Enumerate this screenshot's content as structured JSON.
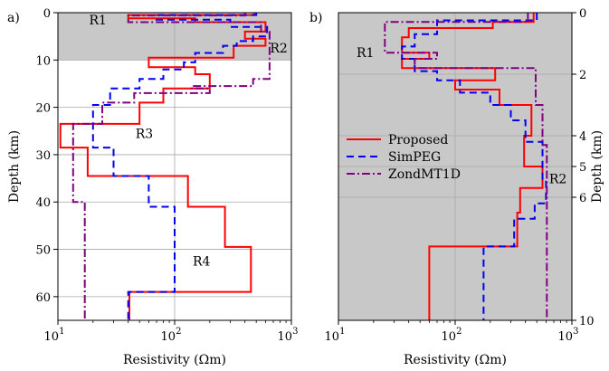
{
  "chart_data": [
    {
      "type": "line",
      "panel_label": "a)",
      "xlabel": "Resistivity (Ωm)",
      "ylabel": "Depth (km)",
      "x_scale": "log",
      "xlim": [
        10,
        1000
      ],
      "ylim": [
        65,
        0
      ],
      "x_ticks": [
        {
          "value": 10,
          "base": "10",
          "exp": "1"
        },
        {
          "value": 100,
          "base": "10",
          "exp": "2"
        },
        {
          "value": 1000,
          "base": "10",
          "exp": "3"
        }
      ],
      "y_ticks": [
        "0",
        "10",
        "20",
        "30",
        "40",
        "50",
        "60"
      ],
      "y_tick_values": [
        0,
        10,
        20,
        30,
        40,
        50,
        60
      ],
      "shaded_region": {
        "depth_from": 0,
        "depth_to": 10,
        "color": "#c8c8c8"
      },
      "grid": true,
      "annotations": [
        {
          "text": "R1",
          "x": 22,
          "depth": 1.5
        },
        {
          "text": "R2",
          "x": 780,
          "depth": 7.5
        },
        {
          "text": "R3",
          "x": 55,
          "depth": 25.5
        },
        {
          "text": "R4",
          "x": 170,
          "depth": 52.5
        }
      ],
      "series": [
        {
          "name": "Proposed",
          "color": "#ff0000",
          "dash": "solid",
          "points": [
            [
              480,
              0
            ],
            [
              480,
              0.5
            ],
            [
              40,
              0.5
            ],
            [
              40,
              1.2
            ],
            [
              150,
              1.2
            ],
            [
              150,
              2
            ],
            [
              600,
              2
            ],
            [
              600,
              4
            ],
            [
              400,
              4
            ],
            [
              400,
              5.5
            ],
            [
              600,
              5.5
            ],
            [
              600,
              7
            ],
            [
              320,
              7
            ],
            [
              320,
              9.5
            ],
            [
              60,
              9.5
            ],
            [
              60,
              11.5
            ],
            [
              150,
              11.5
            ],
            [
              150,
              13
            ],
            [
              200,
              13
            ],
            [
              200,
              16
            ],
            [
              80,
              16
            ],
            [
              80,
              19
            ],
            [
              50,
              19
            ],
            [
              50,
              23.5
            ],
            [
              10.5,
              23.5
            ],
            [
              10.5,
              28.5
            ],
            [
              18,
              28.5
            ],
            [
              18,
              34.5
            ],
            [
              130,
              34.5
            ],
            [
              130,
              41
            ],
            [
              270,
              41
            ],
            [
              270,
              49.5
            ],
            [
              450,
              49.5
            ],
            [
              450,
              59
            ],
            [
              41,
              59
            ],
            [
              41,
              65
            ]
          ]
        },
        {
          "name": "SimPEG",
          "color": "#0000ee",
          "dash": "8,5",
          "points": [
            [
              500,
              0
            ],
            [
              500,
              0.5
            ],
            [
              70,
              0.5
            ],
            [
              70,
              1.5
            ],
            [
              300,
              1.5
            ],
            [
              300,
              3
            ],
            [
              620,
              3
            ],
            [
              620,
              5
            ],
            [
              470,
              5
            ],
            [
              470,
              6
            ],
            [
              340,
              6
            ],
            [
              340,
              7
            ],
            [
              260,
              7
            ],
            [
              260,
              8.5
            ],
            [
              150,
              8.5
            ],
            [
              150,
              10.5
            ],
            [
              120,
              10.5
            ],
            [
              120,
              12
            ],
            [
              80,
              12
            ],
            [
              80,
              14
            ],
            [
              50,
              14
            ],
            [
              50,
              16
            ],
            [
              28,
              16
            ],
            [
              28,
              19.5
            ],
            [
              20,
              19.5
            ],
            [
              20,
              28.5
            ],
            [
              30,
              28.5
            ],
            [
              30,
              34.5
            ],
            [
              60,
              34.5
            ],
            [
              60,
              41
            ],
            [
              100,
              41
            ],
            [
              100,
              59
            ],
            [
              40,
              59
            ],
            [
              40,
              65
            ]
          ]
        },
        {
          "name": "ZondMT1D",
          "color": "#800080",
          "dash": "9,3,2,3",
          "points": [
            [
              400,
              0
            ],
            [
              400,
              0.6
            ],
            [
              40,
              0.6
            ],
            [
              40,
              2
            ],
            [
              550,
              2
            ],
            [
              550,
              4
            ],
            [
              650,
              4
            ],
            [
              650,
              14
            ],
            [
              470,
              14
            ],
            [
              470,
              15.5
            ],
            [
              140,
              15.5
            ],
            [
              140,
              16
            ],
            [
              200,
              16
            ],
            [
              200,
              17
            ],
            [
              45,
              17
            ],
            [
              45,
              19
            ],
            [
              24,
              19
            ],
            [
              24,
              23.5
            ],
            [
              13.5,
              23.5
            ],
            [
              13.5,
              40
            ],
            [
              17,
              40
            ],
            [
              17,
              65
            ]
          ]
        }
      ]
    },
    {
      "type": "line",
      "panel_label": "b)",
      "xlabel": "Resistivity (Ωm)",
      "ylabel": "Depth (km)",
      "x_scale": "log",
      "xlim": [
        10,
        1000
      ],
      "ylim": [
        10,
        0
      ],
      "x_ticks": [
        {
          "value": 10,
          "base": "10",
          "exp": "1"
        },
        {
          "value": 100,
          "base": "10",
          "exp": "2"
        },
        {
          "value": 1000,
          "base": "10",
          "exp": "3"
        }
      ],
      "y_ticks": [
        "0",
        "2",
        "4",
        "5",
        "6",
        "10"
      ],
      "y_tick_values": [
        0,
        2,
        4,
        5,
        6,
        10
      ],
      "y_axis_side": "right",
      "shaded_region": {
        "depth_from": 0,
        "depth_to": 10,
        "color": "#c8c8c8"
      },
      "grid": true,
      "annotations": [
        {
          "text": "R1",
          "x": 17,
          "depth": 1.3
        },
        {
          "text": "R2",
          "x": 760,
          "depth": 5.4
        }
      ],
      "legend": {
        "position": "center-left",
        "entries": [
          "Proposed",
          "SimPEG",
          "ZondMT1D"
        ]
      },
      "series": [
        {
          "name": "Proposed",
          "color": "#ff0000",
          "dash": "solid",
          "points": [
            [
              470,
              0
            ],
            [
              470,
              0.3
            ],
            [
              210,
              0.3
            ],
            [
              210,
              0.5
            ],
            [
              40,
              0.5
            ],
            [
              40,
              0.8
            ],
            [
              35,
              0.8
            ],
            [
              35,
              1.3
            ],
            [
              60,
              1.3
            ],
            [
              60,
              1.5
            ],
            [
              35,
              1.5
            ],
            [
              35,
              1.8
            ],
            [
              220,
              1.8
            ],
            [
              220,
              2.2
            ],
            [
              100,
              2.2
            ],
            [
              100,
              2.5
            ],
            [
              240,
              2.5
            ],
            [
              240,
              3
            ],
            [
              450,
              3
            ],
            [
              450,
              4
            ],
            [
              390,
              4
            ],
            [
              390,
              5
            ],
            [
              560,
              5
            ],
            [
              560,
              5.7
            ],
            [
              360,
              5.7
            ],
            [
              360,
              6.5
            ],
            [
              340,
              6.5
            ],
            [
              340,
              7.6
            ],
            [
              60,
              7.6
            ],
            [
              60,
              10
            ]
          ]
        },
        {
          "name": "SimPEG",
          "color": "#0000ee",
          "dash": "8,5",
          "points": [
            [
              500,
              0
            ],
            [
              500,
              0.25
            ],
            [
              70,
              0.25
            ],
            [
              70,
              0.7
            ],
            [
              45,
              0.7
            ],
            [
              45,
              1.1
            ],
            [
              35,
              1.1
            ],
            [
              35,
              1.5
            ],
            [
              45,
              1.5
            ],
            [
              45,
              1.9
            ],
            [
              70,
              1.9
            ],
            [
              70,
              2.2
            ],
            [
              110,
              2.2
            ],
            [
              110,
              2.6
            ],
            [
              200,
              2.6
            ],
            [
              200,
              3
            ],
            [
              300,
              3
            ],
            [
              300,
              3.5
            ],
            [
              400,
              3.5
            ],
            [
              400,
              4.2
            ],
            [
              560,
              4.2
            ],
            [
              560,
              5.4
            ],
            [
              600,
              5.4
            ],
            [
              600,
              6.2
            ],
            [
              480,
              6.2
            ],
            [
              480,
              6.7
            ],
            [
              320,
              6.7
            ],
            [
              320,
              7.6
            ],
            [
              175,
              7.6
            ],
            [
              175,
              10
            ]
          ]
        },
        {
          "name": "ZondMT1D",
          "color": "#800080",
          "dash": "9,3,2,3",
          "points": [
            [
              420,
              0
            ],
            [
              420,
              0.3
            ],
            [
              25,
              0.3
            ],
            [
              25,
              1.3
            ],
            [
              70,
              1.3
            ],
            [
              70,
              1.5
            ],
            [
              45,
              1.5
            ],
            [
              45,
              1.8
            ],
            [
              490,
              1.8
            ],
            [
              490,
              3
            ],
            [
              560,
              3
            ],
            [
              560,
              4.3
            ],
            [
              610,
              4.3
            ],
            [
              610,
              10
            ]
          ]
        }
      ]
    }
  ]
}
